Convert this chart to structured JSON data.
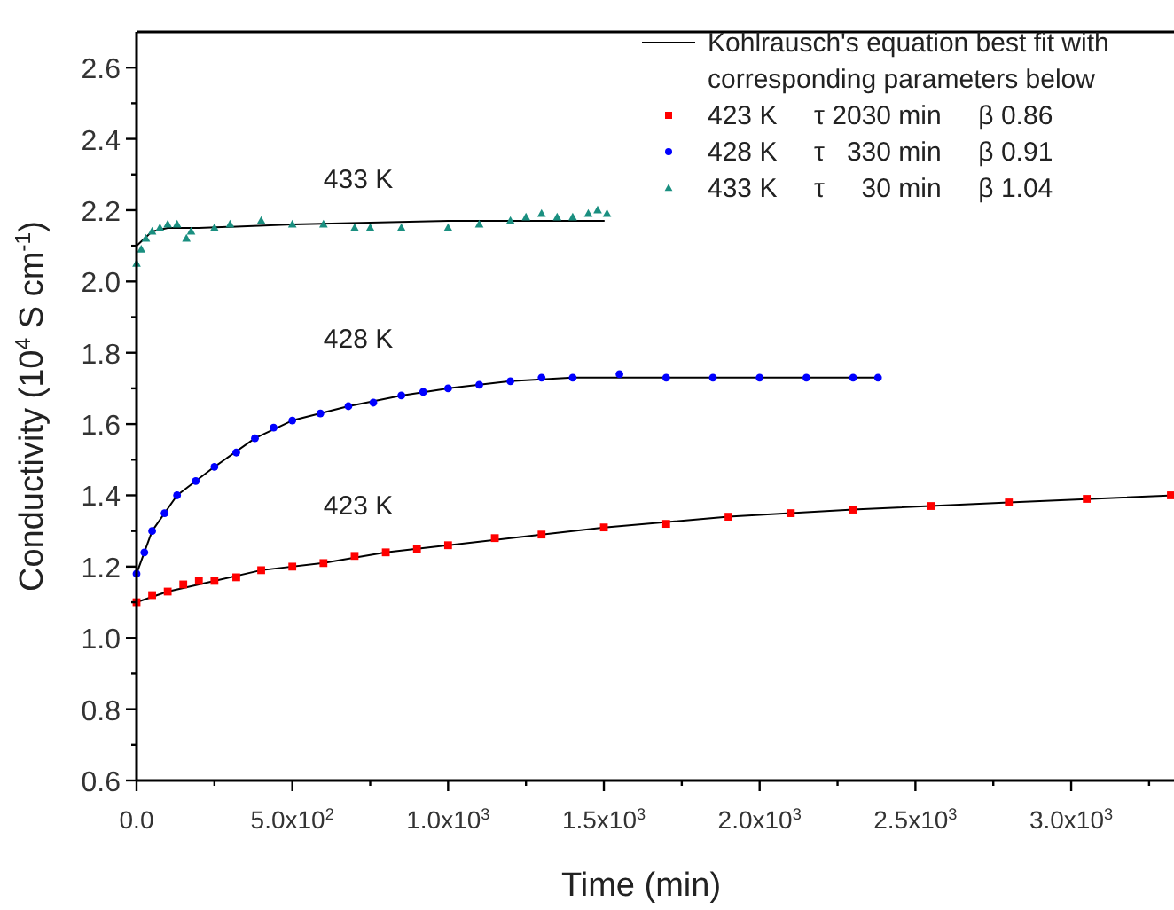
{
  "chart_data": {
    "type": "scatter",
    "xlabel": "Time (min)",
    "ylabel": "Conductivity (10$^{4}$ S cm$^{-1}$)",
    "xlim": [
      0,
      3330
    ],
    "ylim": [
      0.6,
      2.7
    ],
    "xticks": [
      {
        "value": 0,
        "label": "0.0"
      },
      {
        "value": 250,
        "label": null
      },
      {
        "value": 500,
        "label": "5.0x10$^{2}$"
      },
      {
        "value": 750,
        "label": null
      },
      {
        "value": 1000,
        "label": "1.0x10$^{3}$"
      },
      {
        "value": 1250,
        "label": null
      },
      {
        "value": 1500,
        "label": "1.5x10$^{3}$"
      },
      {
        "value": 1750,
        "label": null
      },
      {
        "value": 2000,
        "label": "2.0x10$^{3}$"
      },
      {
        "value": 2250,
        "label": null
      },
      {
        "value": 2500,
        "label": "2.5x10$^{3}$"
      },
      {
        "value": 2750,
        "label": null
      },
      {
        "value": 3000,
        "label": "3.0x10$^{3}$"
      },
      {
        "value": 3250,
        "label": null
      }
    ],
    "yticks": [
      {
        "value": 0.6,
        "label": "0.6"
      },
      {
        "value": 0.7,
        "label": null
      },
      {
        "value": 0.8,
        "label": "0.8"
      },
      {
        "value": 0.9,
        "label": null
      },
      {
        "value": 1.0,
        "label": "1.0"
      },
      {
        "value": 1.1,
        "label": null
      },
      {
        "value": 1.2,
        "label": "1.2"
      },
      {
        "value": 1.3,
        "label": null
      },
      {
        "value": 1.4,
        "label": "1.4"
      },
      {
        "value": 1.5,
        "label": null
      },
      {
        "value": 1.6,
        "label": "1.6"
      },
      {
        "value": 1.7,
        "label": null
      },
      {
        "value": 1.8,
        "label": "1.8"
      },
      {
        "value": 1.9,
        "label": null
      },
      {
        "value": 2.0,
        "label": "2.0"
      },
      {
        "value": 2.1,
        "label": null
      },
      {
        "value": 2.2,
        "label": "2.2"
      },
      {
        "value": 2.3,
        "label": null
      },
      {
        "value": 2.4,
        "label": "2.4"
      },
      {
        "value": 2.5,
        "label": null
      },
      {
        "value": 2.6,
        "label": "2.6"
      }
    ],
    "grid": false,
    "legend": "top right",
    "series": [
      {
        "type": "line",
        "name": "Kohlrausch's equation best fit with corresponding parameters below",
        "color": "#000000",
        "line_style": "solid",
        "x": [
          0,
          100,
          250,
          400,
          600,
          800,
          1000,
          1300,
          1500,
          1900,
          2300,
          2800,
          3330
        ],
        "values": [
          1.1,
          1.13,
          1.16,
          1.19,
          1.21,
          1.24,
          1.26,
          1.29,
          1.31,
          1.34,
          1.36,
          1.38,
          1.4
        ]
      },
      {
        "type": "line",
        "color": "#000000",
        "line_style": "solid",
        "x": [
          0,
          50,
          130,
          250,
          380,
          500,
          680,
          850,
          1000,
          1200,
          1400,
          1600,
          2000,
          2380
        ],
        "values": [
          1.18,
          1.3,
          1.4,
          1.48,
          1.56,
          1.61,
          1.65,
          1.68,
          1.7,
          1.72,
          1.73,
          1.73,
          1.73,
          1.73
        ]
      },
      {
        "type": "line",
        "color": "#000000",
        "line_style": "solid",
        "x": [
          0,
          25,
          50,
          100,
          200,
          500,
          1000,
          1500
        ],
        "values": [
          2.1,
          2.12,
          2.14,
          2.15,
          2.15,
          2.16,
          2.17,
          2.17
        ]
      },
      {
        "name": "423 K     τ 2030 min     β 0.86",
        "color": "#ff0000",
        "marker": "square",
        "x": [
          0,
          50,
          100,
          150,
          200,
          250,
          320,
          400,
          500,
          600,
          700,
          800,
          900,
          1000,
          1150,
          1300,
          1500,
          1700,
          1900,
          2100,
          2300,
          2550,
          2800,
          3050,
          3320
        ],
        "values": [
          1.1,
          1.12,
          1.13,
          1.15,
          1.16,
          1.16,
          1.17,
          1.19,
          1.2,
          1.21,
          1.23,
          1.24,
          1.25,
          1.26,
          1.28,
          1.29,
          1.31,
          1.32,
          1.34,
          1.35,
          1.36,
          1.37,
          1.38,
          1.39,
          1.4
        ]
      },
      {
        "name": "428 K     τ   330 min     β 0.91",
        "color": "#0000ff",
        "marker": "circle",
        "x": [
          0,
          25,
          50,
          90,
          130,
          190,
          250,
          320,
          380,
          440,
          500,
          590,
          680,
          760,
          850,
          920,
          1000,
          1100,
          1200,
          1300,
          1400,
          1550,
          1700,
          1850,
          2000,
          2150,
          2300,
          2380
        ],
        "values": [
          1.18,
          1.24,
          1.3,
          1.35,
          1.4,
          1.44,
          1.48,
          1.52,
          1.56,
          1.59,
          1.61,
          1.63,
          1.65,
          1.66,
          1.68,
          1.69,
          1.7,
          1.71,
          1.72,
          1.73,
          1.73,
          1.74,
          1.73,
          1.73,
          1.73,
          1.73,
          1.73,
          1.73
        ]
      },
      {
        "name": "433 K     τ     30 min     β 1.04",
        "color": "#1a8f80",
        "marker": "triangle",
        "x": [
          0,
          15,
          30,
          50,
          75,
          100,
          130,
          160,
          175,
          250,
          300,
          400,
          500,
          600,
          700,
          750,
          850,
          1000,
          1100,
          1200,
          1250,
          1300,
          1350,
          1400,
          1450,
          1480,
          1510
        ],
        "values": [
          2.05,
          2.09,
          2.12,
          2.14,
          2.15,
          2.16,
          2.16,
          2.12,
          2.14,
          2.15,
          2.16,
          2.17,
          2.16,
          2.16,
          2.15,
          2.15,
          2.15,
          2.15,
          2.16,
          2.17,
          2.18,
          2.19,
          2.18,
          2.18,
          2.19,
          2.2,
          2.19
        ]
      }
    ],
    "annotations": [
      "433 K",
      "428 K",
      "423 K"
    ]
  }
}
